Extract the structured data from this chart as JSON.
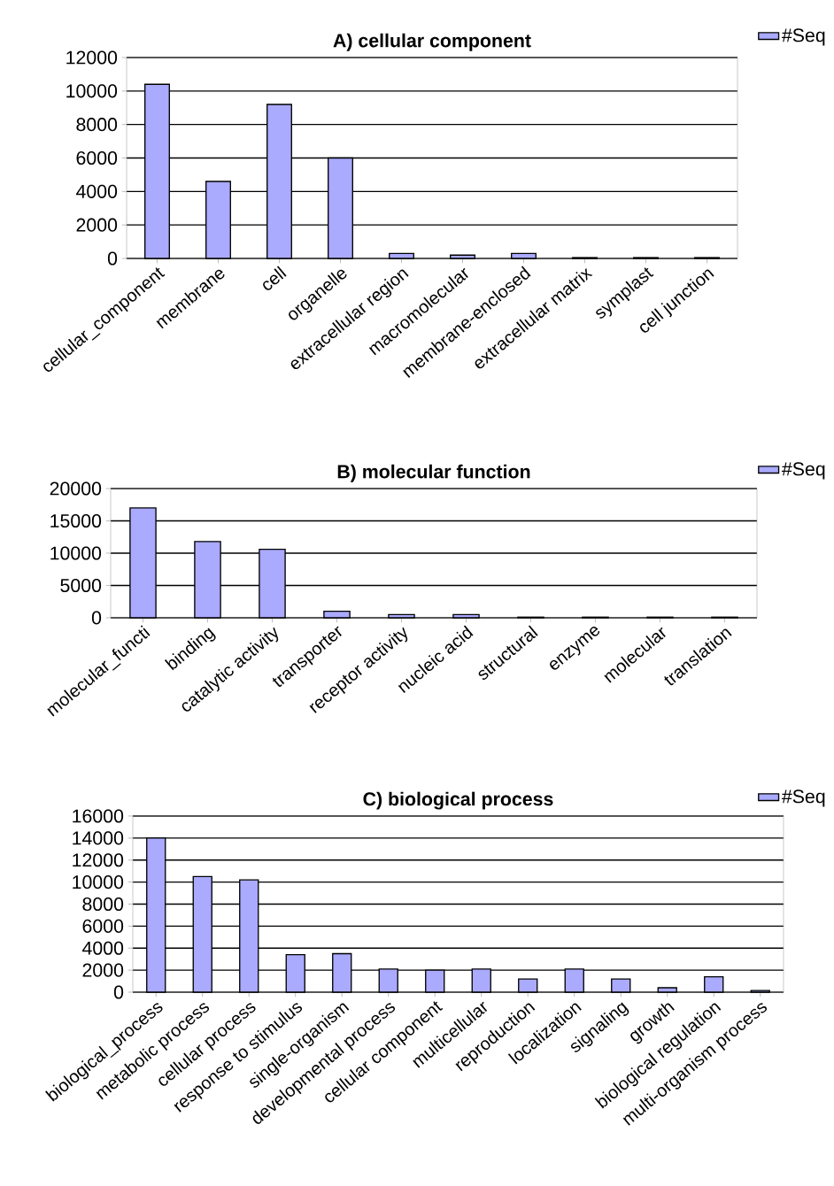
{
  "chart_data": [
    {
      "type": "bar",
      "title": "A) cellular component",
      "categories": [
        "cellular_component",
        "membrane",
        "cell",
        "organelle",
        "extracellular region",
        "macromolecular",
        "membrane-enclosed",
        "extracellular matrix",
        "symplast",
        "cell junction"
      ],
      "series": [
        {
          "name": "#Seq",
          "color": "#aaaaff",
          "values": [
            10400,
            4600,
            9200,
            6000,
            300,
            200,
            300,
            50,
            50,
            50
          ]
        }
      ],
      "ylim": [
        0,
        12000
      ],
      "yticks": [
        0,
        2000,
        4000,
        6000,
        8000,
        10000,
        12000
      ],
      "grid": "y",
      "legend": "top right"
    },
    {
      "type": "bar",
      "title": "B) molecular function",
      "categories": [
        "molecular_functi",
        "binding",
        "catalytic activity",
        "transporter",
        "receptor activity",
        "nucleic acid",
        "structural",
        "enzyme",
        "molecular",
        "translation"
      ],
      "series": [
        {
          "name": "#Seq",
          "color": "#aaaaff",
          "values": [
            17000,
            11800,
            10600,
            1000,
            500,
            500,
            100,
            100,
            100,
            100
          ]
        }
      ],
      "ylim": [
        0,
        20000
      ],
      "yticks": [
        0,
        5000,
        10000,
        15000,
        20000
      ],
      "grid": "y",
      "legend": "top right"
    },
    {
      "type": "bar",
      "title": "C) biological process",
      "categories": [
        "biological_process",
        "metabolic process",
        "cellular process",
        "response to stimulus",
        "single-organism",
        "developmental process",
        "cellular component",
        "multicellular",
        "reproduction",
        "localization",
        "signaling",
        "growth",
        "biological regulation",
        "multi-organism process"
      ],
      "series": [
        {
          "name": "#Seq",
          "color": "#aaaaff",
          "values": [
            14000,
            10500,
            10200,
            3400,
            3500,
            2100,
            2000,
            2100,
            1200,
            2100,
            1200,
            400,
            1400,
            150
          ]
        }
      ],
      "ylim": [
        0,
        16000
      ],
      "yticks": [
        0,
        2000,
        4000,
        6000,
        8000,
        10000,
        12000,
        14000,
        16000
      ],
      "grid": "y",
      "legend": "top right"
    }
  ]
}
